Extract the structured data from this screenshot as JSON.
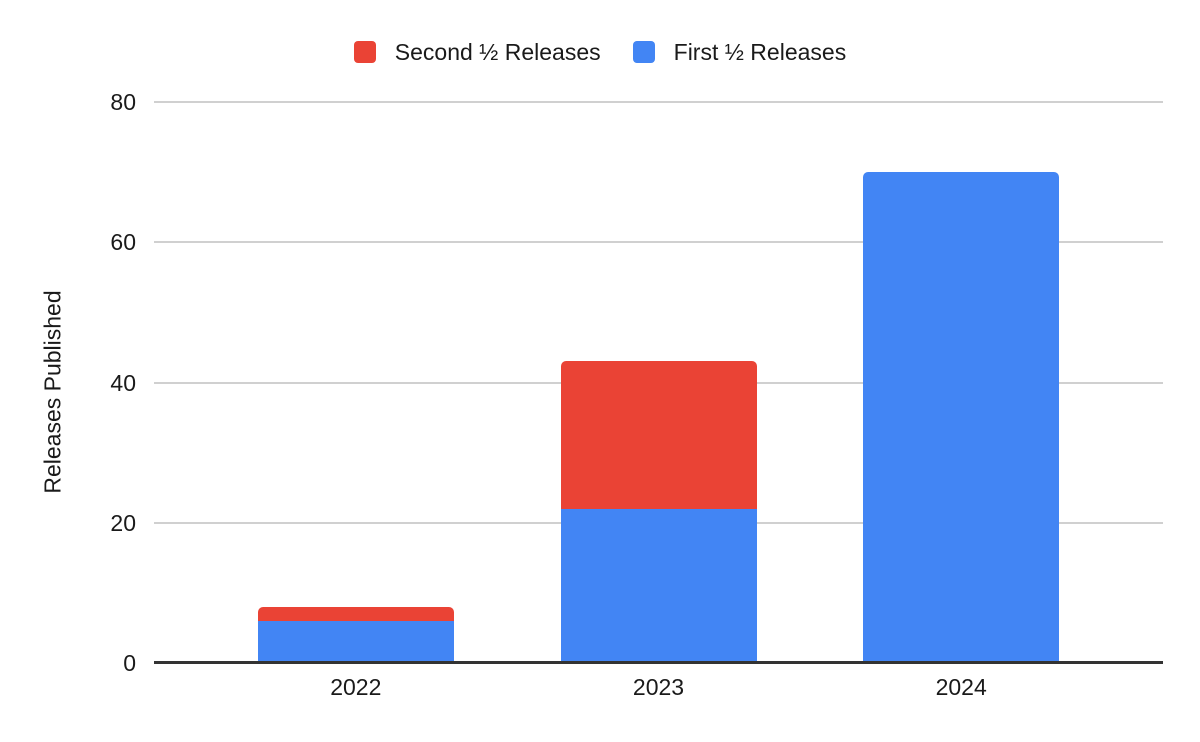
{
  "chart_data": {
    "type": "bar",
    "stacked": true,
    "title": "",
    "categories": [
      "2022",
      "2023",
      "2024"
    ],
    "series": [
      {
        "name": "First ½ Releases",
        "color": "#4285F4",
        "values": [
          6,
          22,
          70
        ]
      },
      {
        "name": "Second ½ Releases",
        "color": "#EA4335",
        "values": [
          2,
          21,
          0
        ]
      }
    ],
    "xlabel": "",
    "ylabel": "Releases Published",
    "ylim": [
      0,
      80
    ],
    "yticks": [
      0,
      20,
      40,
      60,
      80
    ],
    "grid": true,
    "legend_position": "top"
  },
  "legend": {
    "items": [
      {
        "label": "Second ½ Releases",
        "color": "#EA4335"
      },
      {
        "label": "First ½ Releases",
        "color": "#4285F4"
      }
    ]
  },
  "colors": {
    "background": "#FFFFFF",
    "gridline": "#D0D0D0",
    "axis_line": "#333333",
    "text": "#1A1A1A"
  }
}
